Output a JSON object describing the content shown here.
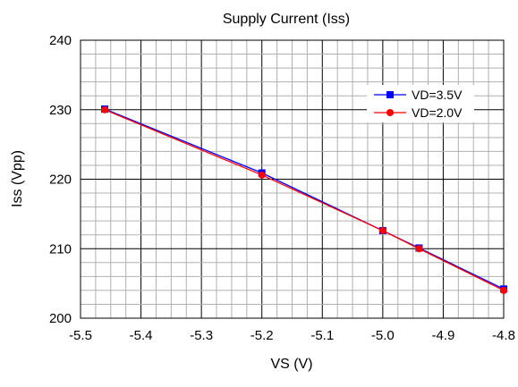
{
  "chart_data": {
    "type": "line",
    "title": "Supply Current (Iss)",
    "xlabel": "VS (V)",
    "ylabel": "Iss (Vpp)",
    "xlim": [
      -5.5,
      -4.8
    ],
    "ylim": [
      200,
      240
    ],
    "xticks": [
      "-5.5",
      "-5.4",
      "-5.3",
      "-5.2",
      "-5.1",
      "-5.0",
      "-4.9",
      "-4.8"
    ],
    "yticks": [
      "200",
      "210",
      "220",
      "230",
      "240"
    ],
    "grid": true,
    "legend_position": "top-right",
    "series": [
      {
        "name": "VD=3.5V",
        "color": "#0000ff",
        "marker": "square",
        "x": [
          -5.46,
          -5.2,
          -5.0,
          -4.94,
          -4.8
        ],
        "y": [
          230.1,
          220.9,
          212.6,
          210.1,
          204.2
        ]
      },
      {
        "name": "VD=2.0V",
        "color": "#ff0000",
        "marker": "circle",
        "x": [
          -5.46,
          -5.2,
          -5.0,
          -4.94,
          -4.8
        ],
        "y": [
          230.0,
          220.6,
          212.6,
          210.0,
          204.0
        ]
      }
    ]
  }
}
